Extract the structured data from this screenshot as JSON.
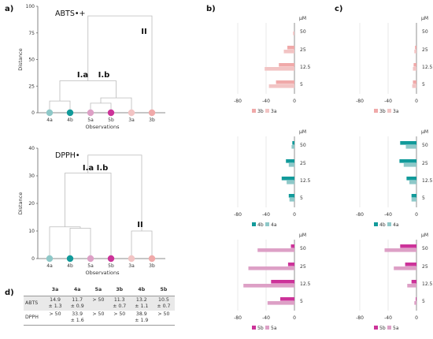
{
  "panel_letters": {
    "a": "a)",
    "b": "b)",
    "c": "c)",
    "d": "d)"
  },
  "colors": {
    "c3a": "#f2c4c4",
    "c3b": "#f0a9a9",
    "c4a": "#8ec8c8",
    "c4b": "#129a9a",
    "c5a": "#dda0c6",
    "c5b": "#cc3399"
  },
  "chart_data": [
    {
      "type": "dendrogram",
      "title": "ABTS•+",
      "xlabel": "Observations",
      "ylabel": "Distance",
      "ylim": [
        0,
        100
      ],
      "yticks": [
        0,
        25,
        50,
        75,
        100
      ],
      "leaves": [
        "4a",
        "4b",
        "5a",
        "5b",
        "3a",
        "3b"
      ],
      "leaf_colors": [
        "#8ec8c8",
        "#129a9a",
        "#dda0c6",
        "#cc3399",
        "#f2c4c4",
        "#f0a9a9"
      ],
      "merges": [
        {
          "left": "5a",
          "right": "5b",
          "height": 9
        },
        {
          "left": "4a",
          "right": "4b",
          "height": 11
        },
        {
          "left": "5a+5b",
          "right": "3a",
          "height": 14
        },
        {
          "left": "4a+4b",
          "right": "5a+5b+3a",
          "height": 30
        },
        {
          "left": "I",
          "right": "3b",
          "height": 91
        }
      ],
      "cluster_labels": [
        "I.a",
        "I.b",
        "II"
      ]
    },
    {
      "type": "dendrogram",
      "title": "DPPH•",
      "xlabel": "Observations",
      "ylabel": "Distance",
      "ylim": [
        0,
        40
      ],
      "yticks": [
        0,
        10,
        20,
        30,
        40
      ],
      "leaves": [
        "4a",
        "4b",
        "5a",
        "5b",
        "3a",
        "3b"
      ],
      "leaf_colors": [
        "#8ec8c8",
        "#129a9a",
        "#dda0c6",
        "#cc3399",
        "#f2c4c4",
        "#f0a9a9"
      ],
      "merges": [
        {
          "left": "4b",
          "right": "5a",
          "height": 11
        },
        {
          "left": "4a",
          "right": "4b+5a",
          "height": 11.5
        },
        {
          "left": "3a",
          "right": "3b",
          "height": 10
        },
        {
          "left": "4a+4b+5a",
          "right": "5b",
          "height": 31
        },
        {
          "left": "I",
          "right": "II",
          "height": 37.5
        }
      ],
      "cluster_labels": [
        "I.a",
        "I.b",
        "II"
      ]
    },
    {
      "type": "bar",
      "orientation": "horizontal",
      "panel": "b",
      "categories": [
        "50",
        "25",
        "12.5",
        "5"
      ],
      "unit_label": "μM",
      "xlim": [
        -100,
        0
      ],
      "xticks": [
        -80,
        -40,
        0
      ],
      "series": [
        {
          "name": "3b",
          "color": "#f0a9a9",
          "values": [
            0,
            -10,
            -22,
            -26
          ]
        },
        {
          "name": "3a",
          "color": "#f2c4c4",
          "values": [
            -2,
            -15,
            -42,
            -36
          ]
        }
      ]
    },
    {
      "type": "bar",
      "orientation": "horizontal",
      "panel": "c",
      "categories": [
        "50",
        "25",
        "12.5",
        "5"
      ],
      "unit_label": "μM",
      "xlim": [
        -100,
        0
      ],
      "xticks": [
        -80,
        -40,
        0
      ],
      "series": [
        {
          "name": "3b",
          "color": "#f0a9a9",
          "values": [
            0,
            -2,
            -4,
            -5
          ]
        },
        {
          "name": "3a",
          "color": "#f2c4c4",
          "values": [
            0,
            -3,
            -5,
            -6
          ]
        }
      ]
    },
    {
      "type": "bar",
      "orientation": "horizontal",
      "panel": "b",
      "categories": [
        "50",
        "25",
        "12.5",
        "5"
      ],
      "unit_label": "μM",
      "xlim": [
        -100,
        0
      ],
      "xticks": [
        -80,
        -40,
        0
      ],
      "series": [
        {
          "name": "4b",
          "color": "#129a9a",
          "values": [
            -3,
            -12,
            -18,
            -8
          ]
        },
        {
          "name": "4a",
          "color": "#8ec8c8",
          "values": [
            -4,
            -8,
            -11,
            -7
          ]
        }
      ]
    },
    {
      "type": "bar",
      "orientation": "horizontal",
      "panel": "c",
      "categories": [
        "50",
        "25",
        "12.5",
        "5"
      ],
      "unit_label": "μM",
      "xlim": [
        -100,
        0
      ],
      "xticks": [
        -80,
        -40,
        0
      ],
      "series": [
        {
          "name": "4b",
          "color": "#129a9a",
          "values": [
            -23,
            -24,
            -14,
            -7
          ]
        },
        {
          "name": "4a",
          "color": "#8ec8c8",
          "values": [
            -15,
            -18,
            -10,
            -7
          ]
        }
      ]
    },
    {
      "type": "bar",
      "orientation": "horizontal",
      "panel": "b",
      "categories": [
        "50",
        "25",
        "12.5",
        "5"
      ],
      "unit_label": "μM",
      "xlim": [
        -100,
        0
      ],
      "xticks": [
        -80,
        -40,
        0
      ],
      "series": [
        {
          "name": "5b",
          "color": "#cc3399",
          "values": [
            -5,
            -9,
            -33,
            -20
          ]
        },
        {
          "name": "5a",
          "color": "#dda0c6",
          "values": [
            -52,
            -65,
            -72,
            -38
          ]
        }
      ]
    },
    {
      "type": "bar",
      "orientation": "horizontal",
      "panel": "c",
      "categories": [
        "50",
        "25",
        "12.5",
        "5"
      ],
      "unit_label": "μM",
      "xlim": [
        -100,
        0
      ],
      "xticks": [
        -80,
        -40,
        0
      ],
      "series": [
        {
          "name": "5b",
          "color": "#cc3399",
          "values": [
            -23,
            -16,
            -7,
            -1
          ]
        },
        {
          "name": "5a",
          "color": "#dda0c6",
          "values": [
            -45,
            -32,
            -13,
            -3
          ]
        }
      ]
    },
    {
      "type": "table",
      "columns": [
        "",
        "3a",
        "4a",
        "5a",
        "3b",
        "4b",
        "5b"
      ],
      "rows": [
        {
          "label": "ABTS",
          "cells": [
            [
              "14.9",
              "± 1.3"
            ],
            [
              "11.7",
              "± 0.9"
            ],
            [
              "> 50",
              ""
            ],
            [
              "11.3",
              "± 0.7"
            ],
            [
              "13.2",
              "± 1.1"
            ],
            [
              "10.5",
              "± 0.7"
            ]
          ]
        },
        {
          "label": "DPPH",
          "cells": [
            [
              "> 50",
              ""
            ],
            [
              "33.9",
              "± 1.6"
            ],
            [
              "> 50",
              ""
            ],
            [
              "> 50",
              ""
            ],
            [
              "38.9",
              "± 1.9"
            ],
            [
              "> 50",
              ""
            ]
          ]
        }
      ]
    }
  ]
}
